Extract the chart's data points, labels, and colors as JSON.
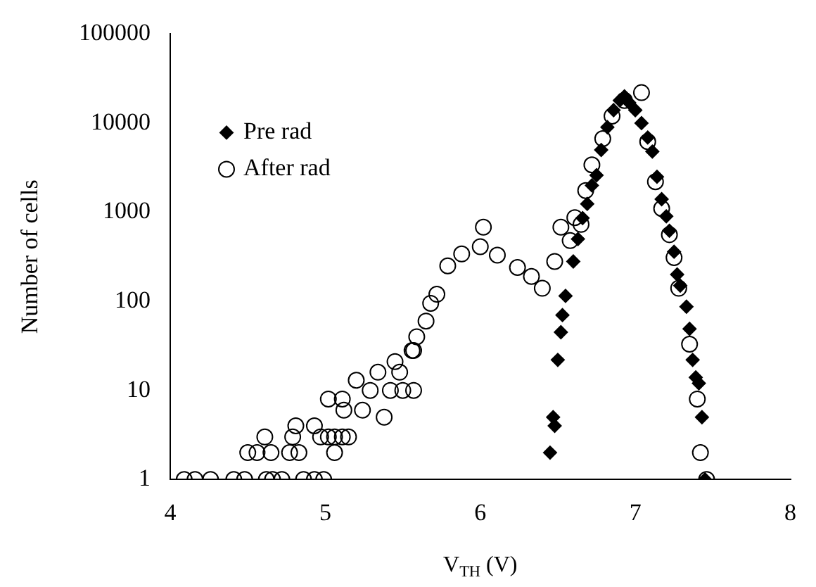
{
  "chart_data": {
    "type": "scatter",
    "xlabel": "V$_{TH}$ (V)",
    "ylabel": "Number of cells",
    "log": "y",
    "grid": false,
    "legend": "top left",
    "xlim": [
      4,
      8
    ],
    "xticks": [
      4,
      5,
      6,
      7,
      8
    ],
    "ylim": [
      1,
      100000
    ],
    "yticks": [
      1,
      10,
      100,
      1000,
      10000,
      100000
    ],
    "series": [
      {
        "name": "Pre rad",
        "color": "#000000",
        "marker": "diamond",
        "x": [
          6.45,
          6.47,
          6.48,
          6.5,
          6.52,
          6.53,
          6.55,
          6.6,
          6.63,
          6.66,
          6.69,
          6.72,
          6.75,
          6.78,
          6.82,
          6.86,
          6.9,
          6.93,
          6.96,
          7.0,
          7.04,
          7.08,
          7.11,
          7.14,
          7.17,
          7.2,
          7.22,
          7.25,
          7.27,
          7.29,
          7.33,
          7.35,
          7.37,
          7.39,
          7.41,
          7.43,
          7.45
        ],
        "values": [
          2,
          5,
          4,
          22,
          45,
          70,
          115,
          280,
          500,
          860,
          1240,
          2000,
          2600,
          5000,
          9000,
          14000,
          18000,
          20000,
          17000,
          14000,
          10000,
          6900,
          4800,
          2500,
          1400,
          900,
          620,
          360,
          200,
          150,
          87,
          49,
          22,
          14,
          12,
          5,
          1
        ]
      },
      {
        "name": "After rad",
        "color": "#000000",
        "marker": "circle",
        "x": [
          4.09,
          4.16,
          4.26,
          4.41,
          4.48,
          4.62,
          4.66,
          4.72,
          4.86,
          4.93,
          4.99,
          4.5,
          4.56,
          4.65,
          4.77,
          4.83,
          5.06,
          4.61,
          4.79,
          4.97,
          5.02,
          5.06,
          5.11,
          5.15,
          4.81,
          4.93,
          5.02,
          5.11,
          5.2,
          5.38,
          5.12,
          5.24,
          5.29,
          5.42,
          5.5,
          5.34,
          5.48,
          5.45,
          5.56,
          5.57,
          5.57,
          5.59,
          5.65,
          5.68,
          5.72,
          5.79,
          5.88,
          6.0,
          6.02,
          6.11,
          6.24,
          6.33,
          6.4,
          6.48,
          6.52,
          6.58,
          6.61,
          6.65,
          6.68,
          6.72,
          6.79,
          6.85,
          6.93,
          7.04,
          7.08,
          7.13,
          7.17,
          7.22,
          7.25,
          7.28,
          7.35,
          7.4,
          7.42,
          7.46
        ],
        "values": [
          1,
          1,
          1,
          1,
          1,
          1,
          1,
          1,
          1,
          1,
          1,
          2,
          2,
          2,
          2,
          2,
          2,
          3,
          3,
          3,
          3,
          3,
          3,
          3,
          4,
          4,
          8,
          8,
          13,
          5,
          6,
          6,
          10,
          10,
          10,
          16,
          16,
          21,
          28,
          10,
          28,
          40,
          60,
          95,
          120,
          250,
          340,
          410,
          680,
          330,
          240,
          190,
          140,
          280,
          680,
          480,
          870,
          730,
          1750,
          3400,
          6700,
          12000,
          18000,
          22000,
          6200,
          2200,
          1100,
          560,
          310,
          140,
          33,
          8,
          2,
          1
        ]
      }
    ]
  }
}
